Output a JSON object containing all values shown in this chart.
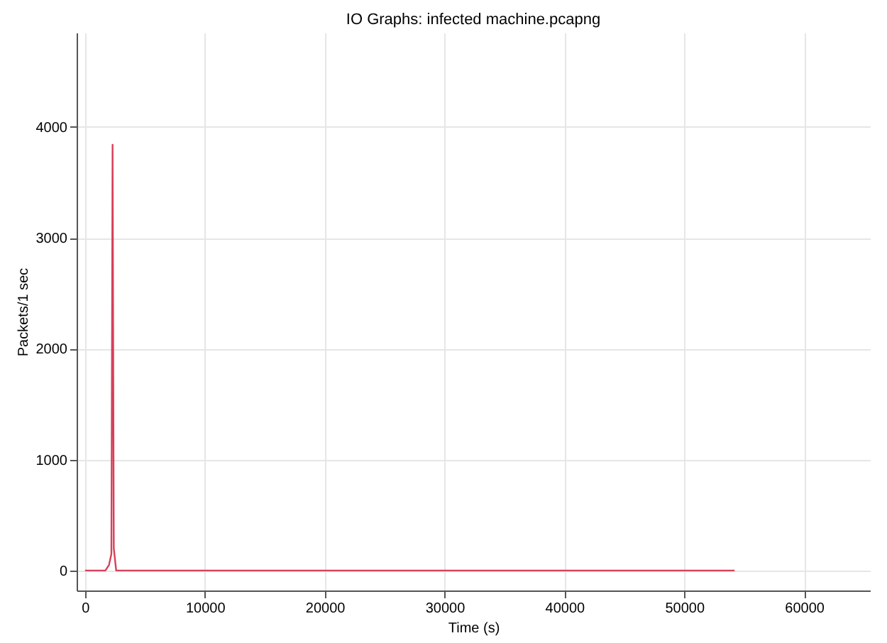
{
  "chart_data": {
    "type": "line",
    "title": "IO Graphs: infected machine.pcapng",
    "xlabel": "Time (s)",
    "ylabel": "Packets/1 sec",
    "x": [
      0,
      1700,
      2000,
      2200,
      2300,
      2400,
      2600,
      54200
    ],
    "series": [
      {
        "color": "#d6405a",
        "values": [
          0,
          0,
          50,
          150,
          3840,
          200,
          0,
          0
        ]
      }
    ],
    "xlim": [
      -700,
      65500
    ],
    "ylim": [
      -180,
      4850
    ],
    "xticks": [
      0,
      10000,
      20000,
      30000,
      40000,
      50000,
      60000
    ],
    "yticks": [
      0,
      1000,
      2000,
      3000,
      4000
    ],
    "grid": true,
    "line_style": "solid"
  }
}
